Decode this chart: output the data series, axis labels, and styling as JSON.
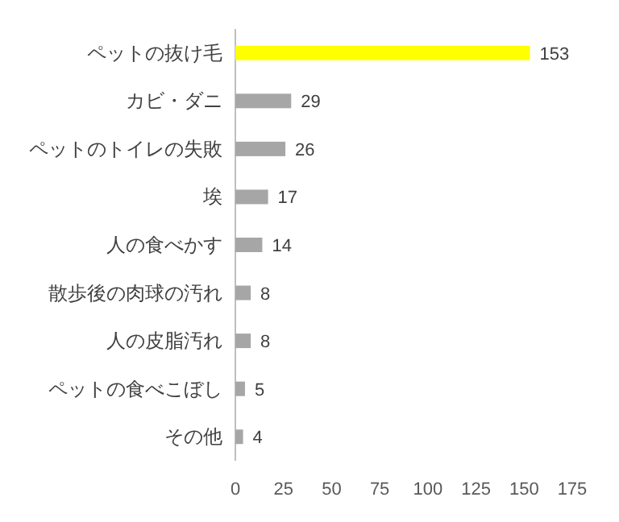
{
  "chart_data": {
    "type": "bar",
    "orientation": "horizontal",
    "categories": [
      "ペットの抜け毛",
      "カビ・ダニ",
      "ペットのトイレの失敗",
      "埃",
      "人の食べかす",
      "散歩後の肉球の汚れ",
      "人の皮脂汚れ",
      "ペットの食べこぼし",
      "その他"
    ],
    "values": [
      153,
      29,
      26,
      17,
      14,
      8,
      8,
      5,
      4
    ],
    "colors": [
      "#ffff00",
      "#a6a6a6",
      "#a6a6a6",
      "#a6a6a6",
      "#a6a6a6",
      "#a6a6a6",
      "#a6a6a6",
      "#a6a6a6",
      "#a6a6a6"
    ],
    "xlim": [
      0,
      175
    ],
    "xticks": [
      0,
      25,
      50,
      75,
      100,
      125,
      150,
      175
    ],
    "data_labels": true,
    "grid": false
  }
}
